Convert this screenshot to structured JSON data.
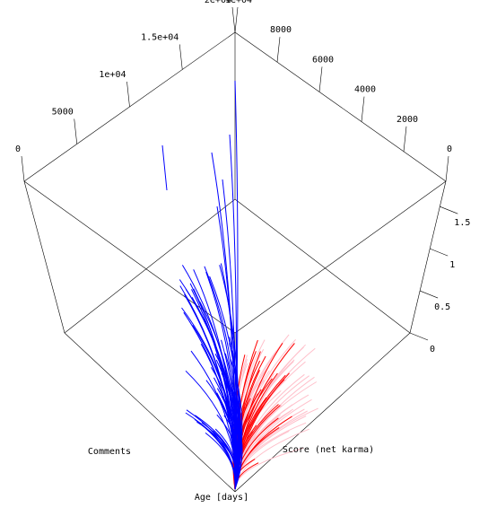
{
  "chart_data": {
    "type": "line",
    "projection": "3d",
    "title": "",
    "axes": {
      "comments": {
        "label": "Comments",
        "range": [
          0,
          20000
        ],
        "ticks": [
          {
            "value": 0,
            "label": "0"
          },
          {
            "value": 5000,
            "label": "5000"
          },
          {
            "value": 10000,
            "label": "1e+04"
          },
          {
            "value": 15000,
            "label": "1.5e+04"
          },
          {
            "value": 20000,
            "label": "2e+04"
          }
        ]
      },
      "score": {
        "label": "Score (net karma)",
        "range": [
          0,
          10000
        ],
        "ticks": [
          {
            "value": 0,
            "label": "0"
          },
          {
            "value": 2000,
            "label": "2000"
          },
          {
            "value": 4000,
            "label": "4000"
          },
          {
            "value": 6000,
            "label": "6000"
          },
          {
            "value": 8000,
            "label": "8000"
          },
          {
            "value": 10000,
            "label": "1e+04"
          }
        ]
      },
      "age": {
        "label": "Age [days]",
        "range": [
          0,
          1.8
        ],
        "ticks": [
          {
            "value": 0,
            "label": "0"
          },
          {
            "value": 0.5,
            "label": "0.5"
          },
          {
            "value": 1,
            "label": "1"
          },
          {
            "value": 1.5,
            "label": "1.5"
          }
        ]
      }
    },
    "series": [
      {
        "color": "#0000ff",
        "count": 55,
        "description_hidden": true
      },
      {
        "color": "#ff0000",
        "count": 30
      },
      {
        "color": "#ffc0cb",
        "count": 45
      }
    ],
    "grid": false,
    "legend": "none"
  }
}
